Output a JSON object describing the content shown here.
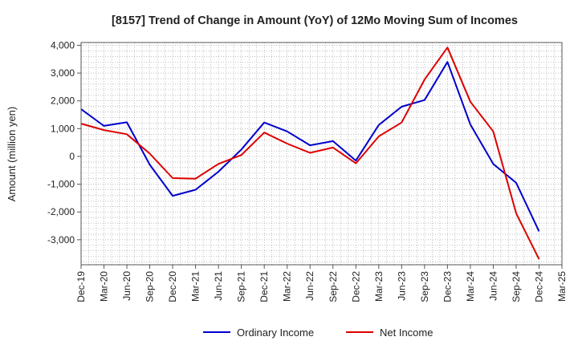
{
  "chart_data": {
    "type": "line",
    "title": "[8157]  Trend of Change in Amount (YoY) of 12Mo Moving Sum of Incomes",
    "xlabel": "",
    "ylabel": "Amount (million yen)",
    "ylim": [
      -3900,
      4100
    ],
    "y_ticks": [
      4000,
      3000,
      2000,
      1000,
      0,
      -1000,
      -2000,
      -3000
    ],
    "y_tick_labels": [
      "4,000",
      "3,000",
      "2,000",
      "1,000",
      "0",
      "-1,000",
      "-2,000",
      "-3,000"
    ],
    "grid": true,
    "legend_position": "bottom",
    "categories": [
      "Dec-19",
      "Mar-20",
      "Jun-20",
      "Sep-20",
      "Dec-20",
      "Mar-21",
      "Jun-21",
      "Sep-21",
      "Dec-21",
      "Mar-22",
      "Jun-22",
      "Sep-22",
      "Dec-22",
      "Mar-23",
      "Jun-23",
      "Sep-23",
      "Dec-23",
      "Mar-24",
      "Jun-24",
      "Sep-24",
      "Dec-24",
      "Mar-25"
    ],
    "series": [
      {
        "name": "Ordinary Income",
        "color": "#0000cc",
        "values": [
          1700,
          1100,
          1230,
          -300,
          -1420,
          -1200,
          -550,
          250,
          1220,
          900,
          400,
          550,
          -150,
          1130,
          1790,
          2030,
          3400,
          1150,
          -270,
          -950,
          -2700,
          null
        ]
      },
      {
        "name": "Net Income",
        "color": "#dd0000",
        "values": [
          1180,
          950,
          800,
          100,
          -780,
          -800,
          -270,
          50,
          860,
          460,
          130,
          320,
          -250,
          720,
          1220,
          2770,
          3920,
          1970,
          900,
          -2050,
          -3700,
          null
        ]
      }
    ]
  }
}
